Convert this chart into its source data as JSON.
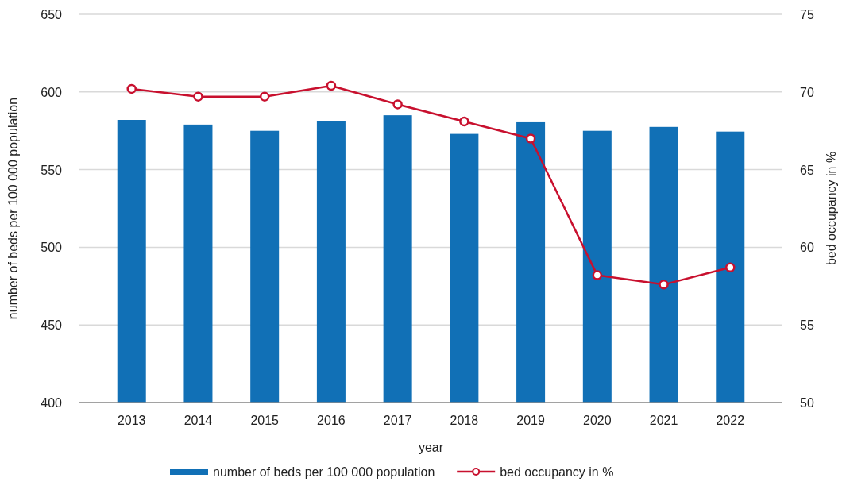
{
  "chart_data": {
    "type": "bar",
    "xlabel": "year",
    "ylabel": "number of beds per 100 000 population",
    "y2label": "bed occupancy in %",
    "categories": [
      "2013",
      "2014",
      "2015",
      "2016",
      "2017",
      "2018",
      "2019",
      "2020",
      "2021",
      "2022"
    ],
    "series": [
      {
        "name": "number of beds per 100 000 population",
        "color": "#1170b6",
        "values": [
          582,
          579,
          575,
          581,
          585,
          573,
          580.5,
          575,
          577.5,
          574.5
        ]
      },
      {
        "name": "bed occupancy in %",
        "type": "line",
        "axis": "y2",
        "color": "#c8102e",
        "marker": "circle",
        "values": [
          70.2,
          69.7,
          69.7,
          70.4,
          69.2,
          68.1,
          67.0,
          58.2,
          57.6,
          58.7
        ]
      }
    ],
    "ylim": [
      400,
      650
    ],
    "yticks": [
      400,
      450,
      500,
      550,
      600,
      650
    ],
    "y2lim": [
      50,
      75
    ],
    "y2ticks": [
      50,
      55,
      60,
      65,
      70,
      75
    ],
    "grid": "y",
    "legend": "bottom"
  }
}
